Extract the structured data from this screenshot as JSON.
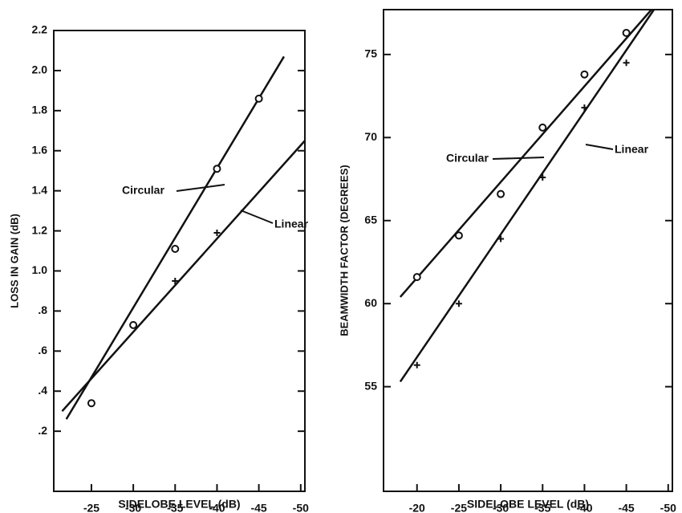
{
  "chart_data": [
    {
      "type": "scatter-fit",
      "x_label": "SIDELOBE LEVEL (dB)",
      "y_label": "LOSS IN GAIN (dB)",
      "xlim": [
        -20.5,
        -50.5
      ],
      "xticks": [
        -25,
        -30,
        -35,
        -40,
        -45,
        -50
      ],
      "ylim": [
        -0.1,
        2.2
      ],
      "yticks": [
        {
          "value": 0.2,
          "label": ".2"
        },
        {
          "value": 0.4,
          "label": ".4"
        },
        {
          "value": 0.6,
          "label": ".6"
        },
        {
          "value": 0.8,
          "label": ".8"
        },
        {
          "value": 1.0,
          "label": "1.0"
        },
        1.2,
        1.4,
        1.6,
        1.8,
        {
          "value": 2.0,
          "label": "2.0"
        },
        2.2
      ],
      "series": [
        {
          "name": "Circular",
          "color": "#111111",
          "marker": "circle",
          "x": [
            -25,
            -30,
            -35,
            -40,
            -45
          ],
          "values": [
            0.34,
            0.73,
            1.11,
            1.51,
            1.86
          ],
          "line_x": [
            -22,
            -48
          ],
          "line_values": [
            0.26,
            2.07
          ]
        },
        {
          "name": "Linear",
          "color": "#111111",
          "marker": "plus",
          "x": [
            -35,
            -40
          ],
          "values": [
            0.95,
            1.19
          ],
          "line_x": [
            -21.5,
            -50.5
          ],
          "line_values": [
            0.3,
            1.65
          ]
        }
      ]
    },
    {
      "type": "scatter-fit",
      "x_label": "SIDELOBE LEVEL (dB)",
      "y_label": "BEAMWIDTH FACTOR (DEGREES)",
      "xlim": [
        -16,
        -50.5
      ],
      "xticks": [
        -20,
        -25,
        -30,
        -35,
        -40,
        -45,
        -50
      ],
      "ylim": [
        48.7,
        77.7
      ],
      "yticks": [
        55,
        60,
        65,
        70,
        75
      ],
      "series": [
        {
          "name": "Circular",
          "color": "#111111",
          "marker": "circle",
          "x": [
            -20,
            -25,
            -30,
            -35,
            -40,
            -45
          ],
          "values": [
            61.6,
            64.1,
            66.6,
            70.6,
            73.8,
            76.3
          ],
          "line_x": [
            -18,
            -48
          ],
          "line_values": [
            60.4,
            77.7
          ]
        },
        {
          "name": "Linear",
          "color": "#111111",
          "marker": "plus",
          "x": [
            -20,
            -25,
            -30,
            -35,
            -40,
            -45
          ],
          "values": [
            56.3,
            60.0,
            63.9,
            67.6,
            71.8,
            74.5
          ],
          "line_x": [
            -18,
            -48.3
          ],
          "line_values": [
            55.3,
            77.7
          ]
        }
      ]
    }
  ]
}
